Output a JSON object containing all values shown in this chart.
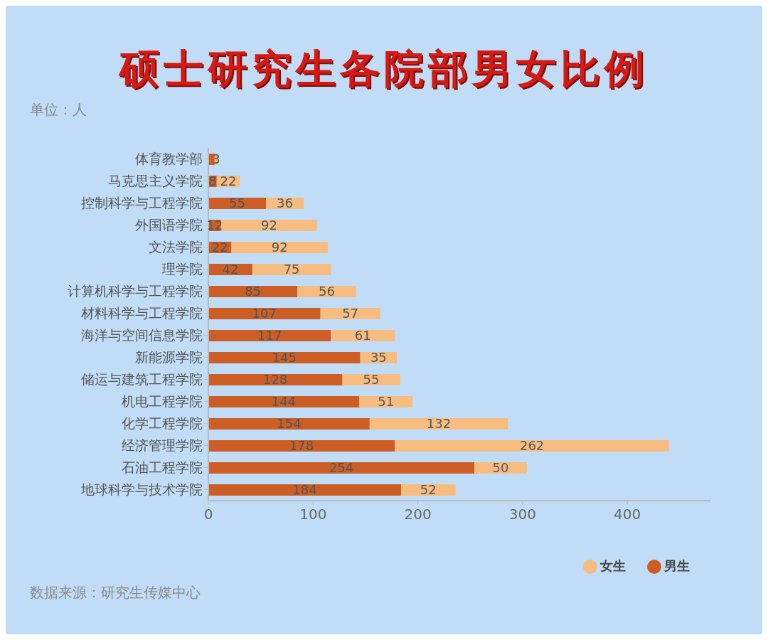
{
  "chart_data": {
    "type": "bar",
    "orientation": "horizontal",
    "stacked": true,
    "title": "硕士研究生各院部男女比例",
    "subtitle": "单位：人",
    "annotations": [
      "数据来源：研究生传媒中心"
    ],
    "categories": [
      "体育教学部",
      "马克思主义学院",
      "控制科学与工程学院",
      "外国语学院",
      "文法学院",
      "理学院",
      "计算机科学与工程学院",
      "材料科学与工程学院",
      "海洋与空间信息学院",
      "新能源学院",
      "储运与建筑工程学院",
      "机电工程学院",
      "化学工程学院",
      "经济管理学院",
      "石油工程学院",
      "地球科学与技术学院"
    ],
    "series": [
      {
        "name": "男生",
        "color": "#cc5e25",
        "values": [
          6,
          8,
          55,
          12,
          22,
          42,
          85,
          107,
          117,
          145,
          128,
          144,
          154,
          178,
          254,
          184
        ],
        "value_labels": [
          null,
          "8",
          "55",
          "12",
          "22",
          "42",
          "85",
          "107",
          "117",
          "145",
          "128",
          "144",
          "154",
          "178",
          "254",
          "184"
        ]
      },
      {
        "name": "女生",
        "color": "#f6bc80",
        "values": [
          3,
          22,
          36,
          92,
          92,
          75,
          56,
          57,
          61,
          35,
          55,
          51,
          132,
          262,
          50,
          52
        ],
        "value_labels": [
          "3",
          "22",
          "36",
          "92",
          "92",
          "75",
          "56",
          "57",
          "61",
          "35",
          "55",
          "51",
          "132",
          "262",
          "50",
          "52"
        ]
      }
    ],
    "xlim": [
      0,
      480
    ],
    "xticks": [
      0,
      100,
      200,
      300,
      400
    ],
    "grid": false,
    "legend": "bottom right"
  }
}
